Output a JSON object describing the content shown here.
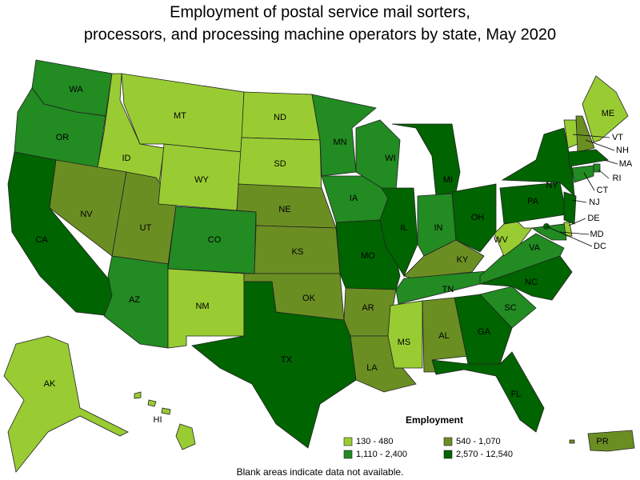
{
  "map": {
    "title_lines": [
      "Employment of postal service mail sorters,",
      "processors, and processing machine operators by state, May 2020"
    ],
    "legend": {
      "title": "Employment",
      "items": [
        {
          "label": "130 - 480",
          "color": "#99cc33"
        },
        {
          "label": "540 - 1,070",
          "color": "#6b8e23"
        },
        {
          "label": "1,110 - 2,400",
          "color": "#228b22"
        },
        {
          "label": "2,570 - 12,540",
          "color": "#006400"
        }
      ]
    },
    "footnote": "Blank areas indicate data not available.",
    "states": [
      {
        "label": "WA",
        "color": "#228b22"
      },
      {
        "label": "OR",
        "color": "#228b22"
      },
      {
        "label": "CA",
        "color": "#006400"
      },
      {
        "label": "ID",
        "color": "#99cc33"
      },
      {
        "label": "NV",
        "color": "#6b8e23"
      },
      {
        "label": "UT",
        "color": "#6b8e23"
      },
      {
        "label": "AZ",
        "color": "#228b22"
      },
      {
        "label": "MT",
        "color": "#99cc33"
      },
      {
        "label": "WY",
        "color": "#99cc33"
      },
      {
        "label": "CO",
        "color": "#228b22"
      },
      {
        "label": "NM",
        "color": "#99cc33"
      },
      {
        "label": "ND",
        "color": "#99cc33"
      },
      {
        "label": "SD",
        "color": "#99cc33"
      },
      {
        "label": "NE",
        "color": "#6b8e23"
      },
      {
        "label": "KS",
        "color": "#6b8e23"
      },
      {
        "label": "OK",
        "color": "#6b8e23"
      },
      {
        "label": "TX",
        "color": "#006400"
      },
      {
        "label": "MN",
        "color": "#228b22"
      },
      {
        "label": "IA",
        "color": "#228b22"
      },
      {
        "label": "MO",
        "color": "#006400"
      },
      {
        "label": "AR",
        "color": "#6b8e23"
      },
      {
        "label": "LA",
        "color": "#6b8e23"
      },
      {
        "label": "WI",
        "color": "#228b22"
      },
      {
        "label": "IL",
        "color": "#006400"
      },
      {
        "label": "MI",
        "color": "#006400"
      },
      {
        "label": "IN",
        "color": "#228b22"
      },
      {
        "label": "OH",
        "color": "#006400"
      },
      {
        "label": "KY",
        "color": "#6b8e23"
      },
      {
        "label": "TN",
        "color": "#228b22"
      },
      {
        "label": "MS",
        "color": "#99cc33"
      },
      {
        "label": "AL",
        "color": "#6b8e23"
      },
      {
        "label": "GA",
        "color": "#006400"
      },
      {
        "label": "FL",
        "color": "#006400"
      },
      {
        "label": "SC",
        "color": "#228b22"
      },
      {
        "label": "NC",
        "color": "#006400"
      },
      {
        "label": "VA",
        "color": "#228b22"
      },
      {
        "label": "WV",
        "color": "#99cc33"
      },
      {
        "label": "PA",
        "color": "#006400"
      },
      {
        "label": "NY",
        "color": "#006400"
      },
      {
        "label": "VT",
        "color": "#99cc33"
      },
      {
        "label": "NH",
        "color": "#6b8e23"
      },
      {
        "label": "ME",
        "color": "#99cc33"
      },
      {
        "label": "MA",
        "color": "#006400"
      },
      {
        "label": "RI",
        "color": "#228b22"
      },
      {
        "label": "CT",
        "color": "#228b22"
      },
      {
        "label": "NJ",
        "color": "#006400"
      },
      {
        "label": "DE",
        "color": "#99cc33"
      },
      {
        "label": "MD",
        "color": "#228b22"
      },
      {
        "label": "DC",
        "color": "#006400"
      },
      {
        "label": "AK",
        "color": "#99cc33"
      },
      {
        "label": "HI",
        "color": "#99cc33"
      },
      {
        "label": "PR",
        "color": "#6b8e23"
      }
    ]
  }
}
